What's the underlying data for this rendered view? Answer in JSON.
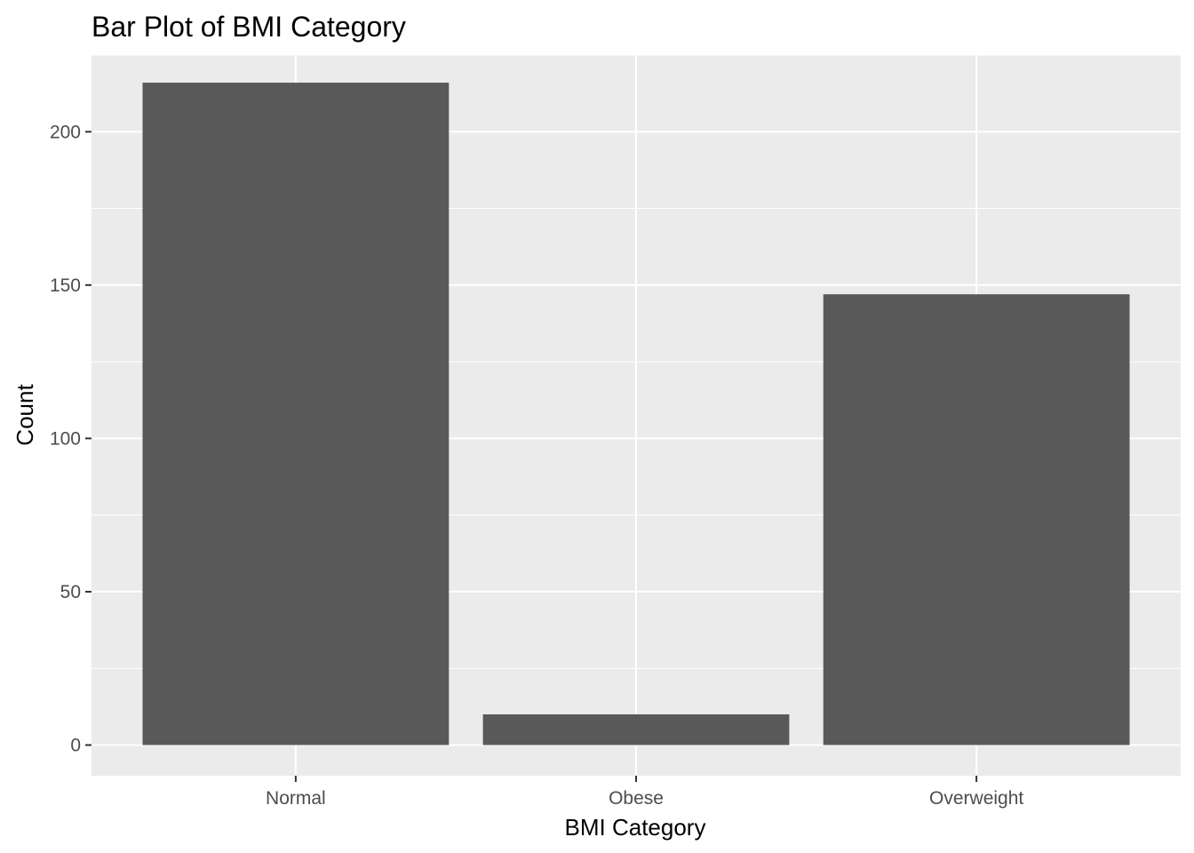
{
  "chart_data": {
    "type": "bar",
    "title": "Bar Plot of BMI Category",
    "xlabel": "BMI Category",
    "ylabel": "Count",
    "categories": [
      "Normal",
      "Obese",
      "Overweight"
    ],
    "values": [
      216,
      10,
      147
    ],
    "ylim": [
      -10,
      225
    ],
    "yticks": [
      0,
      50,
      100,
      150,
      200
    ],
    "ytick_labels": [
      "0",
      "50",
      "100",
      "150",
      "200"
    ],
    "grid": true,
    "legend": "none",
    "colors": {
      "bar": "#595959",
      "panel": "#ebebeb",
      "grid": "#ffffff",
      "tick": "#333333"
    }
  }
}
